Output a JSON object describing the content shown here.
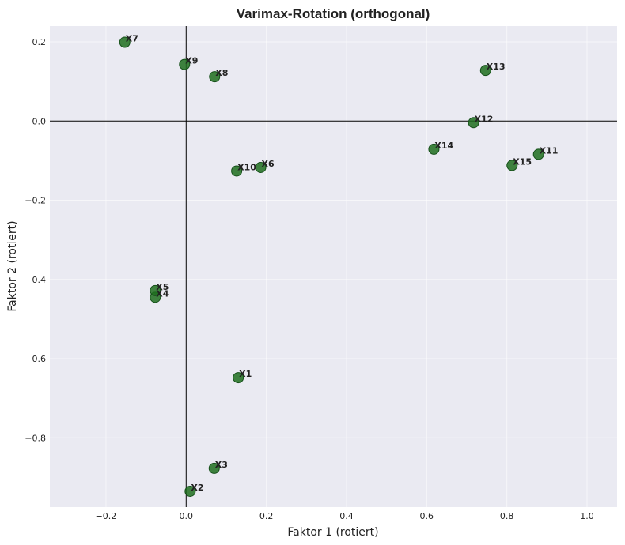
{
  "chart_data": {
    "type": "scatter",
    "title": "Varimax-Rotation (orthogonal)",
    "xlabel": "Faktor 1 (rotiert)",
    "ylabel": "Faktor 2 (rotiert)",
    "xlim": [
      -0.34,
      1.075
    ],
    "ylim": [
      -0.975,
      0.24
    ],
    "xticks": [
      -0.2,
      0.0,
      0.2,
      0.4,
      0.6,
      0.8,
      1.0
    ],
    "xtick_labels": [
      "−0.2",
      "0.0",
      "0.2",
      "0.4",
      "0.6",
      "0.8",
      "1.0"
    ],
    "yticks": [
      0.2,
      0.0,
      -0.2,
      -0.4,
      -0.6,
      -0.8
    ],
    "ytick_labels": [
      "0.2",
      "0.0",
      "−0.2",
      "−0.4",
      "−0.6",
      "−0.8"
    ],
    "grid": true,
    "reference_lines": {
      "x": 0,
      "y": 0
    },
    "point_color": "#1f6e1f",
    "background_color": "#eaeaf2",
    "points": [
      {
        "label": "X1",
        "x": 0.13,
        "y": -0.648
      },
      {
        "label": "X2",
        "x": 0.01,
        "y": -0.935
      },
      {
        "label": "X3",
        "x": 0.07,
        "y": -0.877
      },
      {
        "label": "X4",
        "x": -0.077,
        "y": -0.445
      },
      {
        "label": "X5",
        "x": -0.077,
        "y": -0.428
      },
      {
        "label": "X6",
        "x": 0.186,
        "y": -0.117
      },
      {
        "label": "X7",
        "x": -0.153,
        "y": 0.199
      },
      {
        "label": "X8",
        "x": 0.071,
        "y": 0.112
      },
      {
        "label": "X9",
        "x": -0.004,
        "y": 0.143
      },
      {
        "label": "X10",
        "x": 0.126,
        "y": -0.126
      },
      {
        "label": "X11",
        "x": 0.879,
        "y": -0.084
      },
      {
        "label": "X12",
        "x": 0.717,
        "y": -0.004
      },
      {
        "label": "X13",
        "x": 0.747,
        "y": 0.128
      },
      {
        "label": "X14",
        "x": 0.618,
        "y": -0.071
      },
      {
        "label": "X15",
        "x": 0.813,
        "y": -0.112
      }
    ]
  }
}
